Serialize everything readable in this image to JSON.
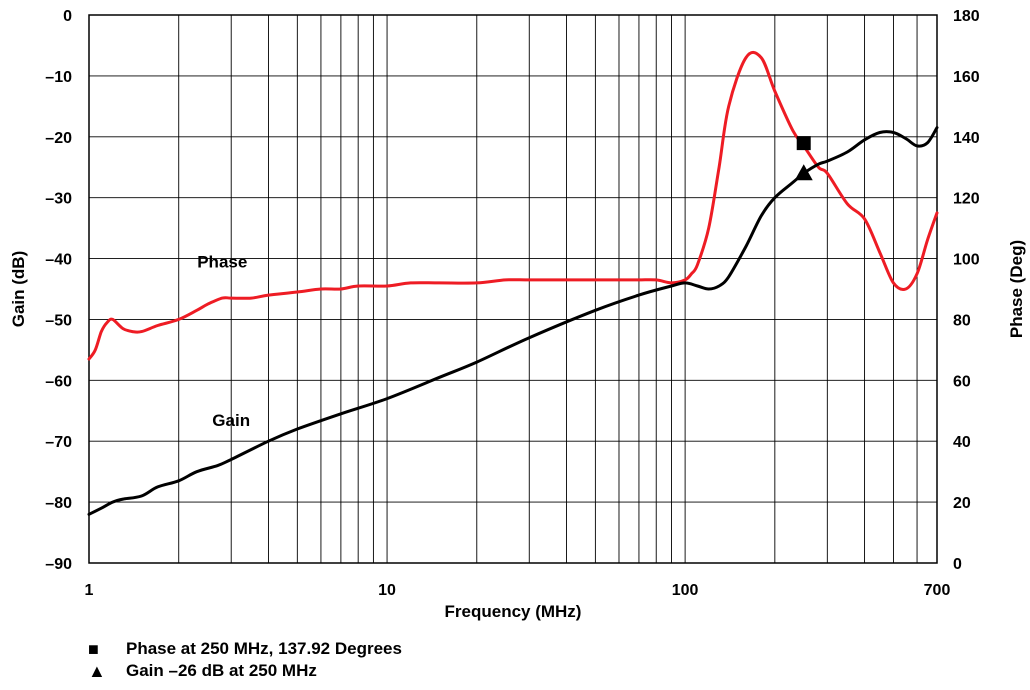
{
  "chart_data": {
    "type": "line",
    "x_scale": "log",
    "xlabel": "Frequency (MHz)",
    "ylabel": "Gain (dB)",
    "y2label": "Phase (Deg)",
    "xlim": [
      1,
      700
    ],
    "ylim": [
      -90,
      0
    ],
    "y2lim": [
      0,
      180
    ],
    "x_ticks": [
      1,
      10,
      100,
      700
    ],
    "x_tick_labels": [
      "1",
      "10",
      "100",
      "700"
    ],
    "y_ticks": [
      0,
      -10,
      -20,
      -30,
      -40,
      -50,
      -60,
      -70,
      -80,
      -90
    ],
    "y_tick_labels": [
      "0",
      "–10",
      "–20",
      "–30",
      "–40",
      "–50",
      "–60",
      "–70",
      "–80",
      "–90"
    ],
    "y2_ticks": [
      0,
      20,
      40,
      60,
      80,
      100,
      120,
      140,
      160,
      180
    ],
    "y2_tick_labels": [
      "0",
      "20",
      "40",
      "60",
      "80",
      "100",
      "120",
      "140",
      "160",
      "180"
    ],
    "grid": "log-x minor gridlines, horizontal gridlines every 10 dB",
    "series": [
      {
        "name": "Phase",
        "axis": "right",
        "color": "#ee1c24",
        "x": [
          1,
          1.05,
          1.1,
          1.15,
          1.2,
          1.3,
          1.4,
          1.5,
          1.7,
          2,
          2.3,
          2.5,
          2.8,
          3,
          3.5,
          4,
          5,
          6,
          7,
          8,
          10,
          12,
          15,
          20,
          25,
          30,
          40,
          50,
          60,
          70,
          80,
          90,
          100,
          105,
          110,
          120,
          130,
          140,
          160,
          180,
          200,
          230,
          250,
          280,
          300,
          350,
          400,
          450,
          500,
          550,
          600,
          650,
          700
        ],
        "values": [
          67,
          70,
          76,
          79,
          80,
          77,
          76,
          76,
          78,
          80,
          83,
          85,
          87,
          87,
          87,
          88,
          89,
          90,
          90,
          91,
          91,
          92,
          92,
          92,
          93,
          93,
          93,
          93,
          93,
          93,
          93,
          92,
          93,
          95,
          98,
          110,
          130,
          150,
          166,
          166,
          155,
          142,
          137,
          130,
          128,
          118,
          113,
          102,
          92,
          90,
          95,
          106,
          115
        ]
      },
      {
        "name": "Gain",
        "axis": "left",
        "color": "#000000",
        "x": [
          1,
          1.1,
          1.2,
          1.3,
          1.5,
          1.7,
          2,
          2.3,
          2.7,
          3,
          4,
          5,
          7,
          10,
          15,
          20,
          30,
          50,
          70,
          90,
          100,
          110,
          120,
          130,
          140,
          160,
          180,
          200,
          230,
          250,
          280,
          300,
          350,
          400,
          450,
          500,
          550,
          600,
          650,
          700
        ],
        "values": [
          -82,
          -81,
          -80,
          -79.5,
          -79,
          -77.5,
          -76.5,
          -75,
          -74,
          -73,
          -70,
          -68,
          -65.5,
          -63,
          -59.5,
          -57,
          -53,
          -48.5,
          -46,
          -44.5,
          -44,
          -44.5,
          -45,
          -44.5,
          -43,
          -38,
          -33,
          -30,
          -27.5,
          -26,
          -24.5,
          -24,
          -22.5,
          -20.5,
          -19.3,
          -19.3,
          -20.3,
          -21.5,
          -21,
          -18.5
        ]
      }
    ],
    "annotations": [
      {
        "text": "Phase",
        "near_x": 2.8,
        "near_y": -40.5
      },
      {
        "text": "Gain",
        "near_x": 3.0,
        "near_y": -66.5
      }
    ],
    "markers": [
      {
        "name": "phase-marker",
        "shape": "square",
        "axis": "right",
        "x": 250,
        "y": 137.92
      },
      {
        "name": "gain-marker",
        "shape": "triangle",
        "axis": "left",
        "x": 250,
        "y": -26
      }
    ]
  },
  "legend": [
    {
      "symbol": "■",
      "icon": "square-marker-icon",
      "text": "Phase at 250 MHz, 137.92 Degrees"
    },
    {
      "symbol": "▲",
      "icon": "triangle-marker-icon",
      "text": "Gain –26 dB at 250 MHz"
    }
  ]
}
